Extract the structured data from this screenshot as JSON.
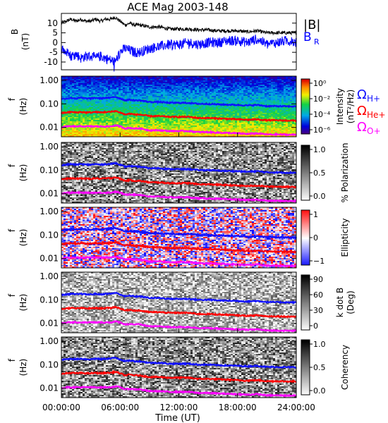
{
  "figure": {
    "title": "ACE Mag 2003-148",
    "xlabel": "Time (UT)"
  },
  "legend": {
    "b_total": {
      "label": "|B|",
      "color": "#000000"
    },
    "b_r": {
      "label": "B",
      "sub": "R",
      "color": "#0000ff"
    },
    "gyro": [
      {
        "sym": "Ω",
        "sub": "H+",
        "color": "#1010ff"
      },
      {
        "sym": "Ω",
        "sub": "He+",
        "color": "#ff0000"
      },
      {
        "sym": "Ω",
        "sub": "O+",
        "color": "#ff00ff"
      }
    ]
  },
  "chart_data": [
    {
      "type": "line",
      "title": "",
      "ylabel": "B",
      "yunit": "(nT)",
      "ylim": [
        -14,
        15
      ],
      "yticks": [
        10,
        5,
        0,
        -5,
        -10
      ],
      "xlim": [
        0,
        24
      ],
      "series": [
        {
          "name": "|B|",
          "color": "#000000",
          "x": [
            0,
            0.5,
            1,
            1.5,
            2,
            2.5,
            3,
            3.5,
            4,
            4.5,
            5,
            5.5,
            6,
            6.5,
            7,
            7.5,
            8,
            9,
            10,
            11,
            12,
            13,
            14,
            15,
            16,
            17,
            18,
            19,
            20,
            21,
            22,
            23,
            24
          ],
          "values": [
            10,
            11,
            12,
            11,
            12,
            11,
            11,
            12,
            11,
            12,
            12,
            13,
            11,
            9,
            10,
            9,
            9,
            8,
            8,
            7,
            7,
            7,
            6.5,
            6.5,
            6,
            6,
            6,
            5.5,
            6,
            5,
            5,
            5,
            5
          ]
        },
        {
          "name": "B",
          "color": "#0000ff",
          "x": [
            0,
            0.5,
            1,
            1.5,
            2,
            2.5,
            3,
            3.5,
            4,
            4.5,
            5,
            5.5,
            6,
            6.5,
            7,
            7.5,
            8,
            9,
            10,
            11,
            12,
            13,
            14,
            15,
            16,
            17,
            18,
            19,
            20,
            21,
            22,
            23,
            24
          ],
          "values": [
            -3,
            -5,
            -7,
            -6,
            -8,
            -7,
            -7,
            -8,
            -7,
            -8,
            -9,
            -10,
            -5,
            -3,
            -4,
            -5,
            -5,
            -3,
            -2,
            -1,
            -1,
            0,
            -1,
            0,
            0,
            1,
            1,
            0,
            2,
            -1,
            0,
            1,
            0
          ]
        }
      ]
    },
    {
      "type": "heatmap",
      "title": "",
      "ylabel": "f",
      "yunit": "(Hz)",
      "yscale": "log",
      "ylim": [
        0.004,
        1.5
      ],
      "yticks": [
        "1.00",
        "0.10",
        "0.01"
      ],
      "xlim": [
        0,
        24
      ],
      "colorbar": {
        "label": "Intensity",
        "unit": "(nT²/Hz)",
        "scale": "rainbow",
        "ticks": [
          "10⁰",
          "10⁻²",
          "10⁻⁴",
          "10⁻⁶"
        ]
      }
    },
    {
      "type": "heatmap",
      "title": "",
      "ylabel": "f",
      "yunit": "(Hz)",
      "yscale": "log",
      "ylim": [
        0.004,
        1.5
      ],
      "yticks": [
        "1.00",
        "0.10",
        "0.01"
      ],
      "xlim": [
        0,
        24
      ],
      "colorbar": {
        "label": "% Polarization",
        "unit": "",
        "scale": "grayscale",
        "ticks": [
          "1.0",
          "0.5",
          "0.0"
        ]
      }
    },
    {
      "type": "heatmap",
      "title": "",
      "ylabel": "f",
      "yunit": "(Hz)",
      "yscale": "log",
      "ylim": [
        0.004,
        1.5
      ],
      "yticks": [
        "1.00",
        "0.10",
        "0.01"
      ],
      "xlim": [
        0,
        24
      ],
      "colorbar": {
        "label": "Ellipticity",
        "unit": "",
        "scale": "bluewhitered",
        "ticks": [
          "1",
          "0",
          "−1"
        ]
      }
    },
    {
      "type": "heatmap",
      "title": "",
      "ylabel": "f",
      "yunit": "(Hz)",
      "yscale": "log",
      "ylim": [
        0.004,
        1.5
      ],
      "yticks": [
        "1.00",
        "0.10",
        "0.01"
      ],
      "xlim": [
        0,
        24
      ],
      "colorbar": {
        "label": "k dot B",
        "unit": "(Deg)",
        "scale": "grayscale",
        "ticks": [
          "90",
          "60",
          "30",
          "0"
        ]
      }
    },
    {
      "type": "heatmap",
      "title": "",
      "ylabel": "f",
      "yunit": "(Hz)",
      "yscale": "log",
      "ylim": [
        0.004,
        1.5
      ],
      "yticks": [
        "1.00",
        "0.10",
        "0.01"
      ],
      "xlim": [
        0,
        24
      ],
      "colorbar": {
        "label": "Coherency",
        "unit": "",
        "scale": "grayscale",
        "ticks": [
          "1.0",
          "0.5",
          "0.0"
        ]
      }
    }
  ],
  "gyrofrequency_lines": {
    "x": [
      0,
      0.5,
      1,
      1.5,
      2,
      2.5,
      3,
      3.5,
      4,
      4.5,
      5,
      5.5,
      6,
      6.5,
      7,
      7.5,
      8,
      9,
      10,
      11,
      12,
      13,
      14,
      15,
      16,
      17,
      18,
      19,
      20,
      21,
      22,
      23,
      24
    ],
    "H+": [
      0.16,
      0.17,
      0.18,
      0.17,
      0.18,
      0.17,
      0.17,
      0.18,
      0.17,
      0.18,
      0.18,
      0.2,
      0.17,
      0.14,
      0.15,
      0.14,
      0.14,
      0.12,
      0.12,
      0.11,
      0.11,
      0.11,
      0.1,
      0.1,
      0.095,
      0.092,
      0.09,
      0.085,
      0.09,
      0.08,
      0.08,
      0.078,
      0.078
    ],
    "He+": [
      0.04,
      0.043,
      0.045,
      0.043,
      0.045,
      0.043,
      0.043,
      0.045,
      0.043,
      0.045,
      0.045,
      0.05,
      0.043,
      0.035,
      0.038,
      0.035,
      0.035,
      0.03,
      0.03,
      0.028,
      0.028,
      0.028,
      0.025,
      0.025,
      0.024,
      0.023,
      0.022,
      0.021,
      0.022,
      0.02,
      0.02,
      0.0195,
      0.0195
    ],
    "O+": [
      0.01,
      0.011,
      0.011,
      0.011,
      0.011,
      0.011,
      0.011,
      0.011,
      0.011,
      0.011,
      0.011,
      0.012,
      0.011,
      0.009,
      0.0095,
      0.009,
      0.009,
      0.0075,
      0.0075,
      0.007,
      0.007,
      0.007,
      0.0063,
      0.0063,
      0.006,
      0.0058,
      0.0056,
      0.0053,
      0.0056,
      0.005,
      0.005,
      0.0049,
      0.0049
    ]
  },
  "xaxis": {
    "ticks": [
      0,
      6,
      12,
      18,
      24
    ],
    "tick_labels": [
      "00:00:00",
      "06:00:00",
      "12:00:00",
      "18:00:00",
      "24:00:00"
    ]
  }
}
